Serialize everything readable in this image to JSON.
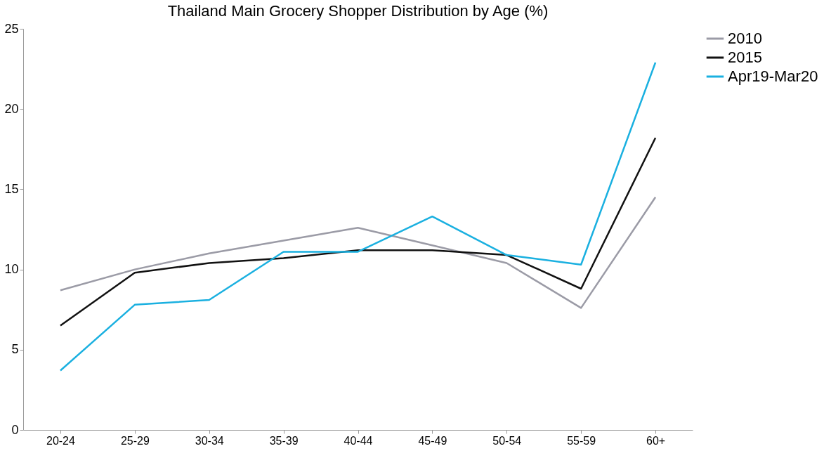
{
  "chart_data": {
    "type": "line",
    "title": "Thailand Main Grocery Shopper Distribution by Age (%)",
    "categories": [
      "20-24",
      "25-29",
      "30-34",
      "35-39",
      "40-44",
      "45-49",
      "50-54",
      "55-59",
      "60+"
    ],
    "series": [
      {
        "name": "2010",
        "color": "#9b9ba6",
        "values": [
          8.7,
          10.0,
          11.0,
          11.8,
          12.6,
          11.5,
          10.4,
          7.6,
          14.5
        ]
      },
      {
        "name": "2015",
        "color": "#111111",
        "values": [
          6.5,
          9.8,
          10.4,
          10.7,
          11.2,
          11.2,
          10.9,
          8.8,
          18.2
        ]
      },
      {
        "name": "Apr19-Mar20",
        "color": "#1ab0e0",
        "values": [
          3.7,
          7.8,
          8.1,
          11.1,
          11.1,
          13.3,
          10.9,
          10.3,
          22.9
        ]
      }
    ],
    "ylim": [
      0,
      25
    ],
    "yticks": [
      0,
      5,
      10,
      15,
      20,
      25
    ],
    "grid": false,
    "legend": "right",
    "marker": "none",
    "line_style": "solid"
  }
}
